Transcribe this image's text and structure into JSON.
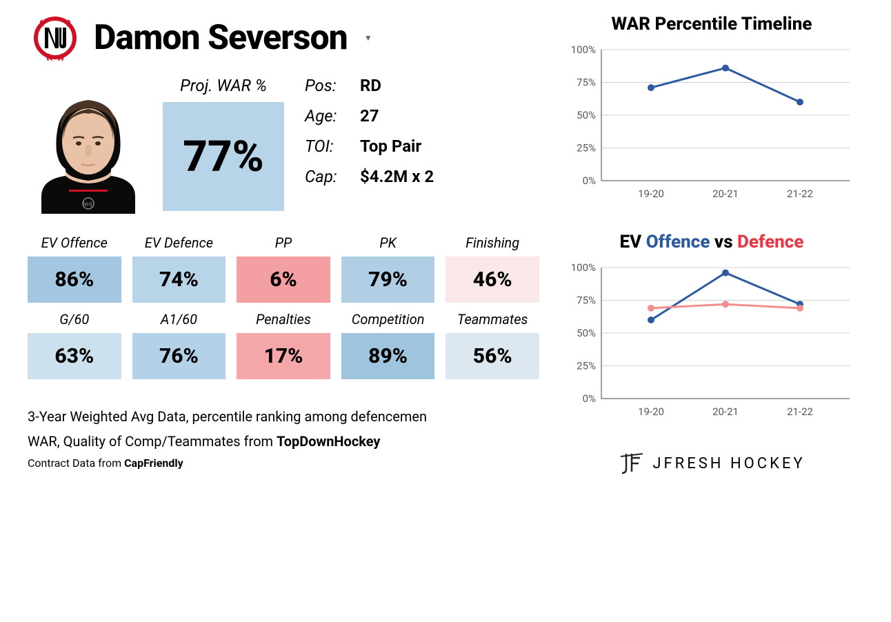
{
  "player": {
    "name": "Damon Severson",
    "team_logo_primary": "#CE1126",
    "team_logo_secondary": "#000000"
  },
  "war": {
    "label": "Proj. WAR %",
    "value": "77%",
    "bg_color": "#b8d4e8"
  },
  "info": [
    {
      "label": "Pos:",
      "value": "RD"
    },
    {
      "label": "Age:",
      "value": "27"
    },
    {
      "label": "TOI:",
      "value": "Top Pair"
    },
    {
      "label": "Cap:",
      "value": "$4.2M x 2"
    }
  ],
  "stats_row1": [
    {
      "label": "EV Offence",
      "value": "86%",
      "bg": "#a3c7e0"
    },
    {
      "label": "EV Defence",
      "value": "74%",
      "bg": "#b8d4e8"
    },
    {
      "label": "PP",
      "value": "6%",
      "bg": "#f4a0a3"
    },
    {
      "label": "PK",
      "value": "79%",
      "bg": "#b0cfe5"
    },
    {
      "label": "Finishing",
      "value": "46%",
      "bg": "#fae8e8"
    }
  ],
  "stats_row2": [
    {
      "label": "G/60",
      "value": "63%",
      "bg": "#cde0ed"
    },
    {
      "label": "A1/60",
      "value": "76%",
      "bg": "#b4d2e7"
    },
    {
      "label": "Penalties",
      "value": "17%",
      "bg": "#f4a6a9"
    },
    {
      "label": "Competition",
      "value": "89%",
      "bg": "#9ec4de"
    },
    {
      "label": "Teammates",
      "value": "56%",
      "bg": "#dde7ef"
    }
  ],
  "footer": {
    "line1_a": "3-Year Weighted Avg Data, percentile ranking among defencemen",
    "line2_a": "WAR, Quality of Comp/Teammates from ",
    "line2_b": "TopDownHockey",
    "line3_a": "Contract Data from ",
    "line3_b": "CapFriendly"
  },
  "chart1": {
    "title": "WAR Percentile Timeline",
    "xlabels": [
      "19-20",
      "20-21",
      "21-22"
    ],
    "yticks": [
      0,
      25,
      50,
      75,
      100
    ],
    "ylim": [
      0,
      100
    ],
    "series": [
      {
        "color": "#2c5aa0",
        "width": 3,
        "marker_r": 5,
        "values": [
          71,
          86,
          60
        ]
      }
    ],
    "grid_color": "#d0d0d0",
    "axis_color": "#808080",
    "tick_fontsize": 15
  },
  "chart2": {
    "title_prefix": "EV ",
    "title_off": "Offence",
    "title_vs": " vs ",
    "title_def": "Defence",
    "xlabels": [
      "19-20",
      "20-21",
      "21-22"
    ],
    "yticks": [
      0,
      25,
      50,
      75,
      100
    ],
    "ylim": [
      0,
      100
    ],
    "series": [
      {
        "color": "#2c5aa0",
        "width": 3,
        "marker_r": 5,
        "values": [
          60,
          96,
          72
        ]
      },
      {
        "color": "#f28e8e",
        "width": 3,
        "marker_r": 5,
        "values": [
          69,
          72,
          69
        ]
      }
    ],
    "grid_color": "#d0d0d0",
    "axis_color": "#808080",
    "tick_fontsize": 15
  },
  "brand": "JFRESH HOCKEY",
  "headshot_colors": {
    "skin": "#e9c2a8",
    "hair": "#4a3426",
    "jersey": "#0a0a0a",
    "jersey_accent": "#CE1126"
  }
}
